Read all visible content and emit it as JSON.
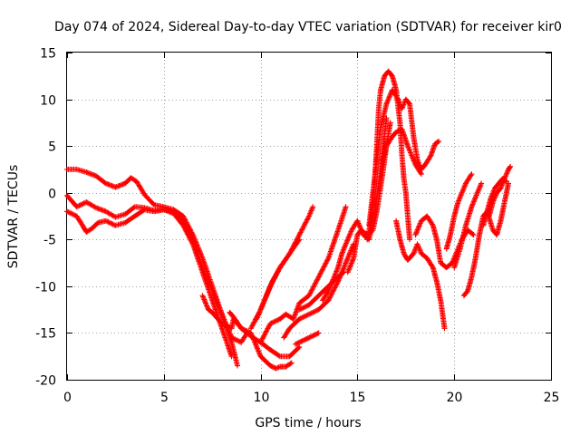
{
  "chart_data": {
    "type": "scatter",
    "title": "Day 074 of 2024, Sidereal Day-to-day VTEC variation (SDTVAR) for receiver kir0",
    "xlabel": "GPS time / hours",
    "ylabel": "SDTVAR / TECUs",
    "xlim": [
      0,
      25
    ],
    "ylim": [
      -20,
      15
    ],
    "x_ticks": [
      0,
      5,
      10,
      15,
      20,
      25
    ],
    "x_tick_labels": [
      "0",
      "5",
      "10",
      "15",
      "20",
      "25"
    ],
    "y_ticks": [
      -20,
      -15,
      -10,
      -5,
      0,
      5,
      10,
      15
    ],
    "y_tick_labels": [
      "-20",
      "-15",
      "-10",
      "-5",
      "0",
      "5",
      "10",
      "15"
    ],
    "grid": true,
    "marker": "plus",
    "color": "#ff0000",
    "series": [
      {
        "name": "trace-1",
        "points": [
          [
            0.0,
            2.5
          ],
          [
            0.5,
            2.5
          ],
          [
            1.0,
            2.2
          ],
          [
            1.5,
            1.8
          ],
          [
            2.0,
            1.0
          ],
          [
            2.5,
            0.6
          ],
          [
            3.0,
            1.0
          ],
          [
            3.3,
            1.6
          ],
          [
            3.6,
            1.2
          ],
          [
            4.0,
            -0.2
          ],
          [
            4.5,
            -1.3
          ],
          [
            5.0,
            -1.5
          ],
          [
            5.5,
            -1.8
          ],
          [
            6.0,
            -2.5
          ],
          [
            6.5,
            -4.5
          ],
          [
            7.0,
            -7.0
          ],
          [
            7.5,
            -10.0
          ],
          [
            8.0,
            -13.0
          ],
          [
            8.5,
            -16.0
          ],
          [
            8.8,
            -18.5
          ]
        ]
      },
      {
        "name": "trace-2",
        "points": [
          [
            0.0,
            -0.3
          ],
          [
            0.5,
            -1.5
          ],
          [
            1.0,
            -1.0
          ],
          [
            1.5,
            -1.6
          ],
          [
            2.0,
            -2.0
          ],
          [
            2.5,
            -2.6
          ],
          [
            3.0,
            -2.3
          ],
          [
            3.5,
            -1.5
          ],
          [
            4.0,
            -1.6
          ],
          [
            4.5,
            -1.9
          ],
          [
            5.0,
            -1.8
          ],
          [
            5.5,
            -2.2
          ],
          [
            6.0,
            -3.5
          ],
          [
            6.5,
            -5.5
          ],
          [
            7.0,
            -8.5
          ],
          [
            7.5,
            -11.5
          ],
          [
            8.0,
            -14.5
          ],
          [
            8.5,
            -17.5
          ]
        ]
      },
      {
        "name": "trace-3",
        "points": [
          [
            0.0,
            -2.0
          ],
          [
            0.5,
            -2.5
          ],
          [
            0.8,
            -3.5
          ],
          [
            1.0,
            -4.2
          ],
          [
            1.3,
            -3.8
          ],
          [
            1.6,
            -3.2
          ],
          [
            2.0,
            -3.0
          ],
          [
            2.5,
            -3.5
          ],
          [
            3.0,
            -3.2
          ],
          [
            3.5,
            -2.5
          ],
          [
            4.0,
            -1.8
          ],
          [
            4.5,
            -2.0
          ],
          [
            5.0,
            -1.8
          ],
          [
            5.5,
            -2.0
          ],
          [
            6.0,
            -3.0
          ],
          [
            6.5,
            -5.0
          ],
          [
            7.0,
            -8.0
          ],
          [
            7.5,
            -10.5
          ],
          [
            8.0,
            -13.0
          ],
          [
            8.5,
            -15.5
          ],
          [
            9.0,
            -16.0
          ],
          [
            9.3,
            -15.0
          ]
        ]
      },
      {
        "name": "trace-4",
        "points": [
          [
            7.0,
            -11.0
          ],
          [
            7.3,
            -12.5
          ],
          [
            7.5,
            -12.8
          ],
          [
            8.0,
            -14.0
          ],
          [
            8.5,
            -14.5
          ],
          [
            8.6,
            -13.5
          ],
          [
            9.0,
            -14.5
          ],
          [
            9.3,
            -15.0
          ],
          [
            9.6,
            -15.5
          ],
          [
            10.0,
            -16.0
          ],
          [
            10.5,
            -16.8
          ],
          [
            11.0,
            -17.5
          ],
          [
            11.5,
            -17.5
          ],
          [
            12.0,
            -16.5
          ]
        ]
      },
      {
        "name": "trace-5",
        "points": [
          [
            8.4,
            -12.8
          ],
          [
            8.6,
            -13.3
          ],
          [
            9.0,
            -14.5
          ],
          [
            9.5,
            -15.0
          ],
          [
            10.0,
            -17.5
          ],
          [
            10.5,
            -18.5
          ],
          [
            10.8,
            -18.8
          ],
          [
            11.0,
            -18.6
          ],
          [
            11.3,
            -18.6
          ],
          [
            11.6,
            -18.2
          ]
        ]
      },
      {
        "name": "trace-6",
        "points": [
          [
            9.8,
            -13.5
          ],
          [
            10.2,
            -11.5
          ],
          [
            10.6,
            -9.5
          ],
          [
            11.0,
            -8.0
          ],
          [
            11.5,
            -6.5
          ],
          [
            12.0,
            -4.5
          ],
          [
            12.5,
            -2.5
          ],
          [
            12.7,
            -1.5
          ]
        ]
      },
      {
        "name": "trace-7",
        "points": [
          [
            9.5,
            -14.5
          ],
          [
            10.0,
            -12.5
          ],
          [
            10.5,
            -10.0
          ],
          [
            11.0,
            -8.0
          ],
          [
            11.5,
            -6.5
          ],
          [
            12.0,
            -5.0
          ]
        ]
      },
      {
        "name": "trace-8",
        "points": [
          [
            10.0,
            -16.0
          ],
          [
            10.5,
            -14.0
          ],
          [
            11.0,
            -13.5
          ],
          [
            11.3,
            -13.0
          ],
          [
            11.7,
            -13.5
          ],
          [
            12.0,
            -11.8
          ],
          [
            12.5,
            -11.0
          ],
          [
            13.0,
            -9.0
          ],
          [
            13.5,
            -7.0
          ],
          [
            14.0,
            -4.0
          ],
          [
            14.4,
            -1.5
          ]
        ]
      },
      {
        "name": "trace-9",
        "points": [
          [
            11.2,
            -15.5
          ],
          [
            11.5,
            -14.5
          ],
          [
            12.0,
            -13.5
          ],
          [
            12.5,
            -13.0
          ],
          [
            13.0,
            -12.5
          ],
          [
            13.5,
            -11.5
          ],
          [
            14.0,
            -9.5
          ],
          [
            14.5,
            -7.0
          ],
          [
            14.8,
            -5.5
          ]
        ]
      },
      {
        "name": "trace-10",
        "points": [
          [
            12.0,
            -12.5
          ],
          [
            12.5,
            -12.0
          ],
          [
            13.0,
            -11.0
          ],
          [
            13.5,
            -10.0
          ],
          [
            14.0,
            -9.0
          ],
          [
            14.3,
            -8.5
          ]
        ]
      },
      {
        "name": "trace-11",
        "points": [
          [
            11.8,
            -16.2
          ],
          [
            12.1,
            -15.9
          ],
          [
            12.4,
            -15.6
          ],
          [
            12.7,
            -15.3
          ],
          [
            13.0,
            -15.0
          ]
        ]
      },
      {
        "name": "trace-12",
        "points": [
          [
            13.2,
            -11.5
          ],
          [
            13.5,
            -10.5
          ],
          [
            13.8,
            -9.0
          ],
          [
            14.0,
            -8.0
          ],
          [
            14.2,
            -6.5
          ],
          [
            14.5,
            -5.0
          ],
          [
            14.7,
            -4.0
          ],
          [
            15.0,
            -3.0
          ],
          [
            15.3,
            -4.5
          ],
          [
            15.6,
            -5.0
          ],
          [
            15.9,
            -2.0
          ],
          [
            16.1,
            1.0
          ],
          [
            16.3,
            4.5
          ],
          [
            16.5,
            8.0
          ]
        ]
      },
      {
        "name": "trace-13",
        "points": [
          [
            14.5,
            -8.5
          ],
          [
            14.8,
            -7.0
          ],
          [
            15.0,
            -4.5
          ],
          [
            15.2,
            -4.0
          ],
          [
            15.5,
            -4.5
          ],
          [
            15.8,
            -4.0
          ],
          [
            16.0,
            -2.0
          ],
          [
            16.3,
            2.0
          ],
          [
            16.5,
            5.0
          ],
          [
            16.7,
            7.5
          ]
        ]
      },
      {
        "name": "trace-14",
        "points": [
          [
            15.5,
            -5.0
          ],
          [
            15.7,
            -3.0
          ],
          [
            15.9,
            1.5
          ],
          [
            16.0,
            5.0
          ],
          [
            16.1,
            9.0
          ],
          [
            16.2,
            11.0
          ],
          [
            16.4,
            12.5
          ],
          [
            16.6,
            13.0
          ],
          [
            16.8,
            12.5
          ],
          [
            17.0,
            11.0
          ],
          [
            17.2,
            7.5
          ],
          [
            17.3,
            4.0
          ],
          [
            17.4,
            1.5
          ],
          [
            17.5,
            0.0
          ],
          [
            17.6,
            -2.5
          ],
          [
            17.7,
            -5.0
          ]
        ]
      },
      {
        "name": "trace-15",
        "points": [
          [
            15.6,
            -3.5
          ],
          [
            15.8,
            0.0
          ],
          [
            16.0,
            3.5
          ],
          [
            16.2,
            7.0
          ],
          [
            16.5,
            9.5
          ],
          [
            16.8,
            11.0
          ],
          [
            17.1,
            10.0
          ],
          [
            17.3,
            9.0
          ],
          [
            17.5,
            10.0
          ],
          [
            17.7,
            9.5
          ],
          [
            17.9,
            6.0
          ],
          [
            18.1,
            3.5
          ],
          [
            18.3,
            2.5
          ],
          [
            18.5,
            3.0
          ],
          [
            18.8,
            4.0
          ],
          [
            19.0,
            5.2
          ],
          [
            19.2,
            5.5
          ]
        ]
      },
      {
        "name": "trace-16",
        "points": [
          [
            16.3,
            3.5
          ],
          [
            16.5,
            5.0
          ],
          [
            16.8,
            6.0
          ],
          [
            17.0,
            6.5
          ],
          [
            17.3,
            6.8
          ],
          [
            17.6,
            5.0
          ],
          [
            17.8,
            4.0
          ],
          [
            18.0,
            3.0
          ],
          [
            18.3,
            2.0
          ]
        ]
      },
      {
        "name": "trace-17",
        "points": [
          [
            17.0,
            -3.0
          ],
          [
            17.2,
            -5.0
          ],
          [
            17.4,
            -6.5
          ],
          [
            17.6,
            -7.2
          ],
          [
            17.9,
            -6.5
          ],
          [
            18.1,
            -5.5
          ],
          [
            18.3,
            -6.5
          ],
          [
            18.6,
            -7.0
          ],
          [
            18.9,
            -8.0
          ],
          [
            19.1,
            -9.5
          ],
          [
            19.3,
            -11.5
          ],
          [
            19.5,
            -14.5
          ]
        ]
      },
      {
        "name": "trace-18",
        "points": [
          [
            18.0,
            -4.5
          ],
          [
            18.3,
            -3.0
          ],
          [
            18.6,
            -2.5
          ],
          [
            18.9,
            -3.5
          ],
          [
            19.1,
            -5.0
          ],
          [
            19.3,
            -7.5
          ],
          [
            19.6,
            -8.0
          ],
          [
            19.9,
            -7.5
          ],
          [
            20.1,
            -6.5
          ],
          [
            20.4,
            -5.0
          ],
          [
            20.7,
            -4.0
          ],
          [
            21.0,
            -4.5
          ]
        ]
      },
      {
        "name": "trace-19",
        "points": [
          [
            19.6,
            -6.0
          ],
          [
            19.8,
            -4.5
          ],
          [
            20.0,
            -2.5
          ],
          [
            20.2,
            -1.0
          ],
          [
            20.4,
            0.0
          ],
          [
            20.6,
            1.0
          ],
          [
            20.9,
            2.0
          ]
        ]
      },
      {
        "name": "trace-20",
        "points": [
          [
            20.0,
            -8.0
          ],
          [
            20.3,
            -6.0
          ],
          [
            20.6,
            -3.5
          ],
          [
            20.9,
            -1.5
          ],
          [
            21.2,
            0.0
          ],
          [
            21.4,
            1.0
          ]
        ]
      },
      {
        "name": "trace-21",
        "points": [
          [
            20.5,
            -11.0
          ],
          [
            20.7,
            -10.5
          ],
          [
            20.9,
            -9.0
          ],
          [
            21.1,
            -7.0
          ],
          [
            21.3,
            -4.5
          ],
          [
            21.5,
            -2.5
          ],
          [
            21.7,
            -2.0
          ],
          [
            22.0,
            -4.0
          ],
          [
            22.2,
            -4.5
          ],
          [
            22.4,
            -3.0
          ],
          [
            22.6,
            -1.0
          ],
          [
            22.8,
            1.0
          ]
        ]
      },
      {
        "name": "trace-22",
        "points": [
          [
            21.8,
            -2.5
          ],
          [
            22.0,
            -1.0
          ],
          [
            22.2,
            0.0
          ],
          [
            22.4,
            0.5
          ],
          [
            22.6,
            1.5
          ],
          [
            22.8,
            2.5
          ],
          [
            22.9,
            2.8
          ]
        ]
      },
      {
        "name": "trace-23",
        "points": [
          [
            21.5,
            -3.5
          ],
          [
            21.7,
            -2.0
          ],
          [
            21.9,
            -0.5
          ],
          [
            22.1,
            0.5
          ],
          [
            22.3,
            1.0
          ],
          [
            22.5,
            1.5
          ],
          [
            22.7,
            1.2
          ]
        ]
      }
    ]
  }
}
